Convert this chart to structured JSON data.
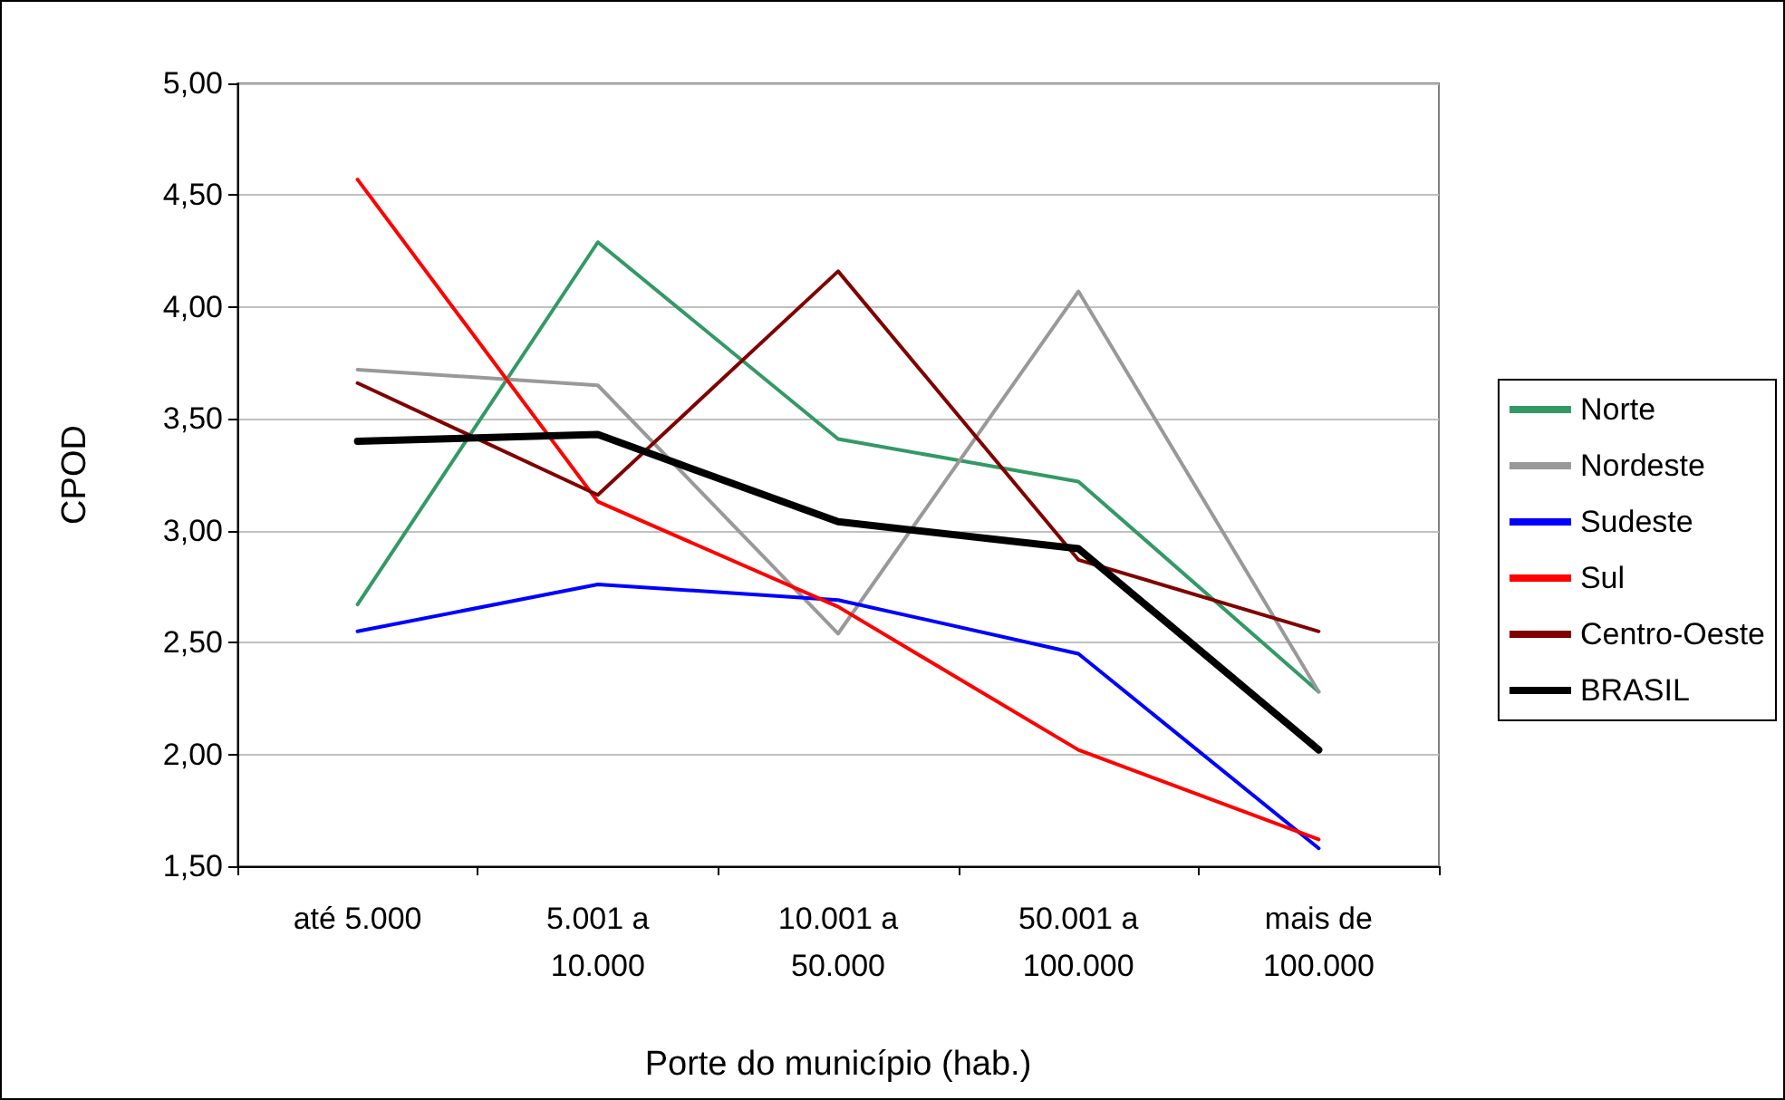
{
  "chart_data": {
    "type": "line",
    "xlabel": "Porte do município (hab.)",
    "ylabel": "CPOD",
    "categories": [
      "até 5.000",
      "5.001 a\n10.000",
      "10.001 a\n50.000",
      "50.001 a\n100.000",
      "mais de\n100.000"
    ],
    "series": [
      {
        "name": "Norte",
        "color": "#339966",
        "values": [
          2.67,
          4.29,
          3.41,
          3.22,
          2.28
        ]
      },
      {
        "name": "Nordeste",
        "color": "#999999",
        "values": [
          3.72,
          3.65,
          2.54,
          4.07,
          2.28
        ]
      },
      {
        "name": "Sudeste",
        "color": "#0000ff",
        "values": [
          2.55,
          2.76,
          2.69,
          2.45,
          1.58
        ]
      },
      {
        "name": "Sul",
        "color": "#ff0000",
        "values": [
          4.57,
          3.13,
          2.66,
          2.02,
          1.62
        ]
      },
      {
        "name": "Centro-Oeste",
        "color": "#800000",
        "values": [
          3.66,
          3.16,
          4.16,
          2.87,
          2.55
        ]
      },
      {
        "name": "BRASIL",
        "color": "#000000",
        "values": [
          3.4,
          3.43,
          3.04,
          2.92,
          2.02
        ]
      }
    ],
    "ylim": [
      1.5,
      5
    ],
    "yticks": [
      {
        "value": 1.5,
        "label": "1,50"
      },
      {
        "value": 2,
        "label": "2,00"
      },
      {
        "value": 2.5,
        "label": "2,50"
      },
      {
        "value": 3,
        "label": "3,00"
      },
      {
        "value": 3.5,
        "label": "3,50"
      },
      {
        "value": 4,
        "label": "4,00"
      },
      {
        "value": 4.5,
        "label": "4,50"
      },
      {
        "value": 5,
        "label": "5,00"
      }
    ],
    "grid": "y",
    "legend": "right",
    "marker": "none",
    "line_style": "solid"
  }
}
